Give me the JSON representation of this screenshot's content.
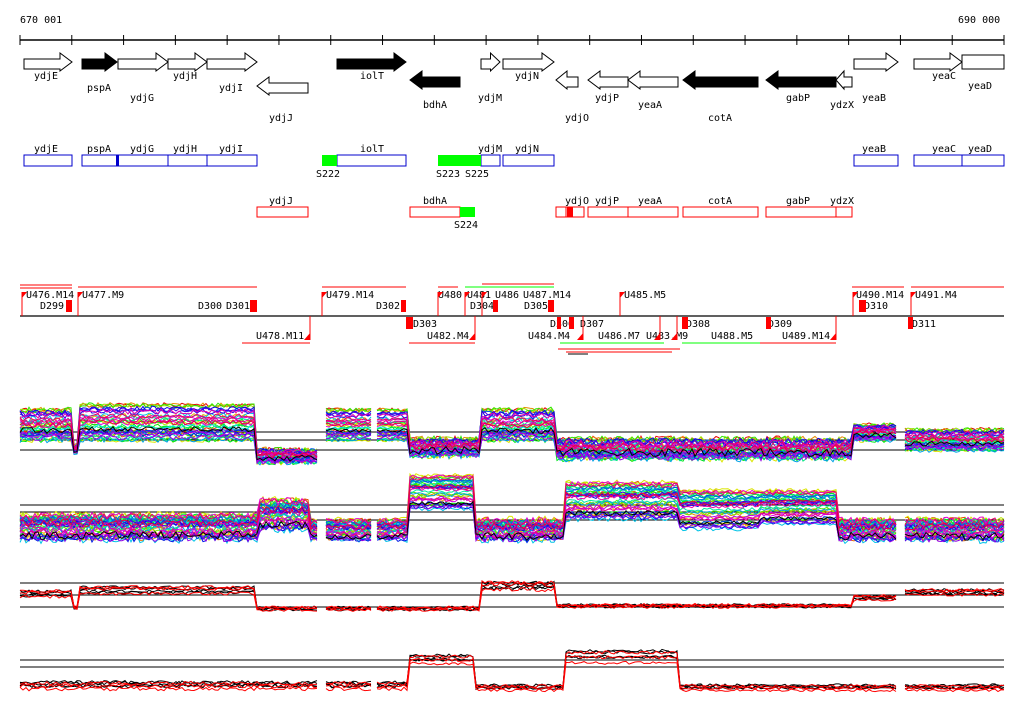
{
  "ruler": {
    "start_label": "670 001",
    "end_label": "690 000"
  },
  "genes": [
    "ydjE",
    "pspA",
    "ydjG",
    "ydjH",
    "ydjI",
    "ydjJ",
    "iolT",
    "bdhA",
    "ydjM",
    "ydjN",
    "ydjO",
    "ydjP",
    "yeaA",
    "cotA",
    "gabP",
    "ydzX",
    "yeaB",
    "yeaC",
    "yeaD"
  ],
  "forward_boxes": [
    "ydjE",
    "pspA",
    "ydjG",
    "ydjH",
    "ydjI",
    "iolT",
    "ydjM",
    "ydjN",
    "yeaB",
    "yeaC",
    "yeaD"
  ],
  "reverse_boxes": [
    "ydjJ",
    "bdhA",
    "ydjO",
    "ydjP",
    "yeaA",
    "cotA",
    "gabP",
    "ydzX"
  ],
  "sites_forward": [
    "S222",
    "S223",
    "S225"
  ],
  "sites_reverse": [
    "S224"
  ],
  "segments_upper": [
    "U476.M14",
    "D299",
    "U477.M9",
    "D300",
    "D301",
    "U479.M14",
    "D302",
    "U480",
    "U481",
    "U486",
    "U487.M14",
    "D304",
    "D305",
    "U485.M5",
    "U490.M14",
    "D310",
    "U491.M4"
  ],
  "segments_lower": [
    "U478.M11",
    "D303",
    "U482.M4",
    "D306",
    "D307",
    "U484.M4",
    "U486.M7",
    "U483.M9",
    "D308",
    "U488.M5",
    "D309",
    "U489.M14",
    "D311"
  ],
  "colors": {
    "forward": "#0000cc",
    "reverse": "#ff0000",
    "site": "#00ff00",
    "gene_filled": "#000000"
  }
}
